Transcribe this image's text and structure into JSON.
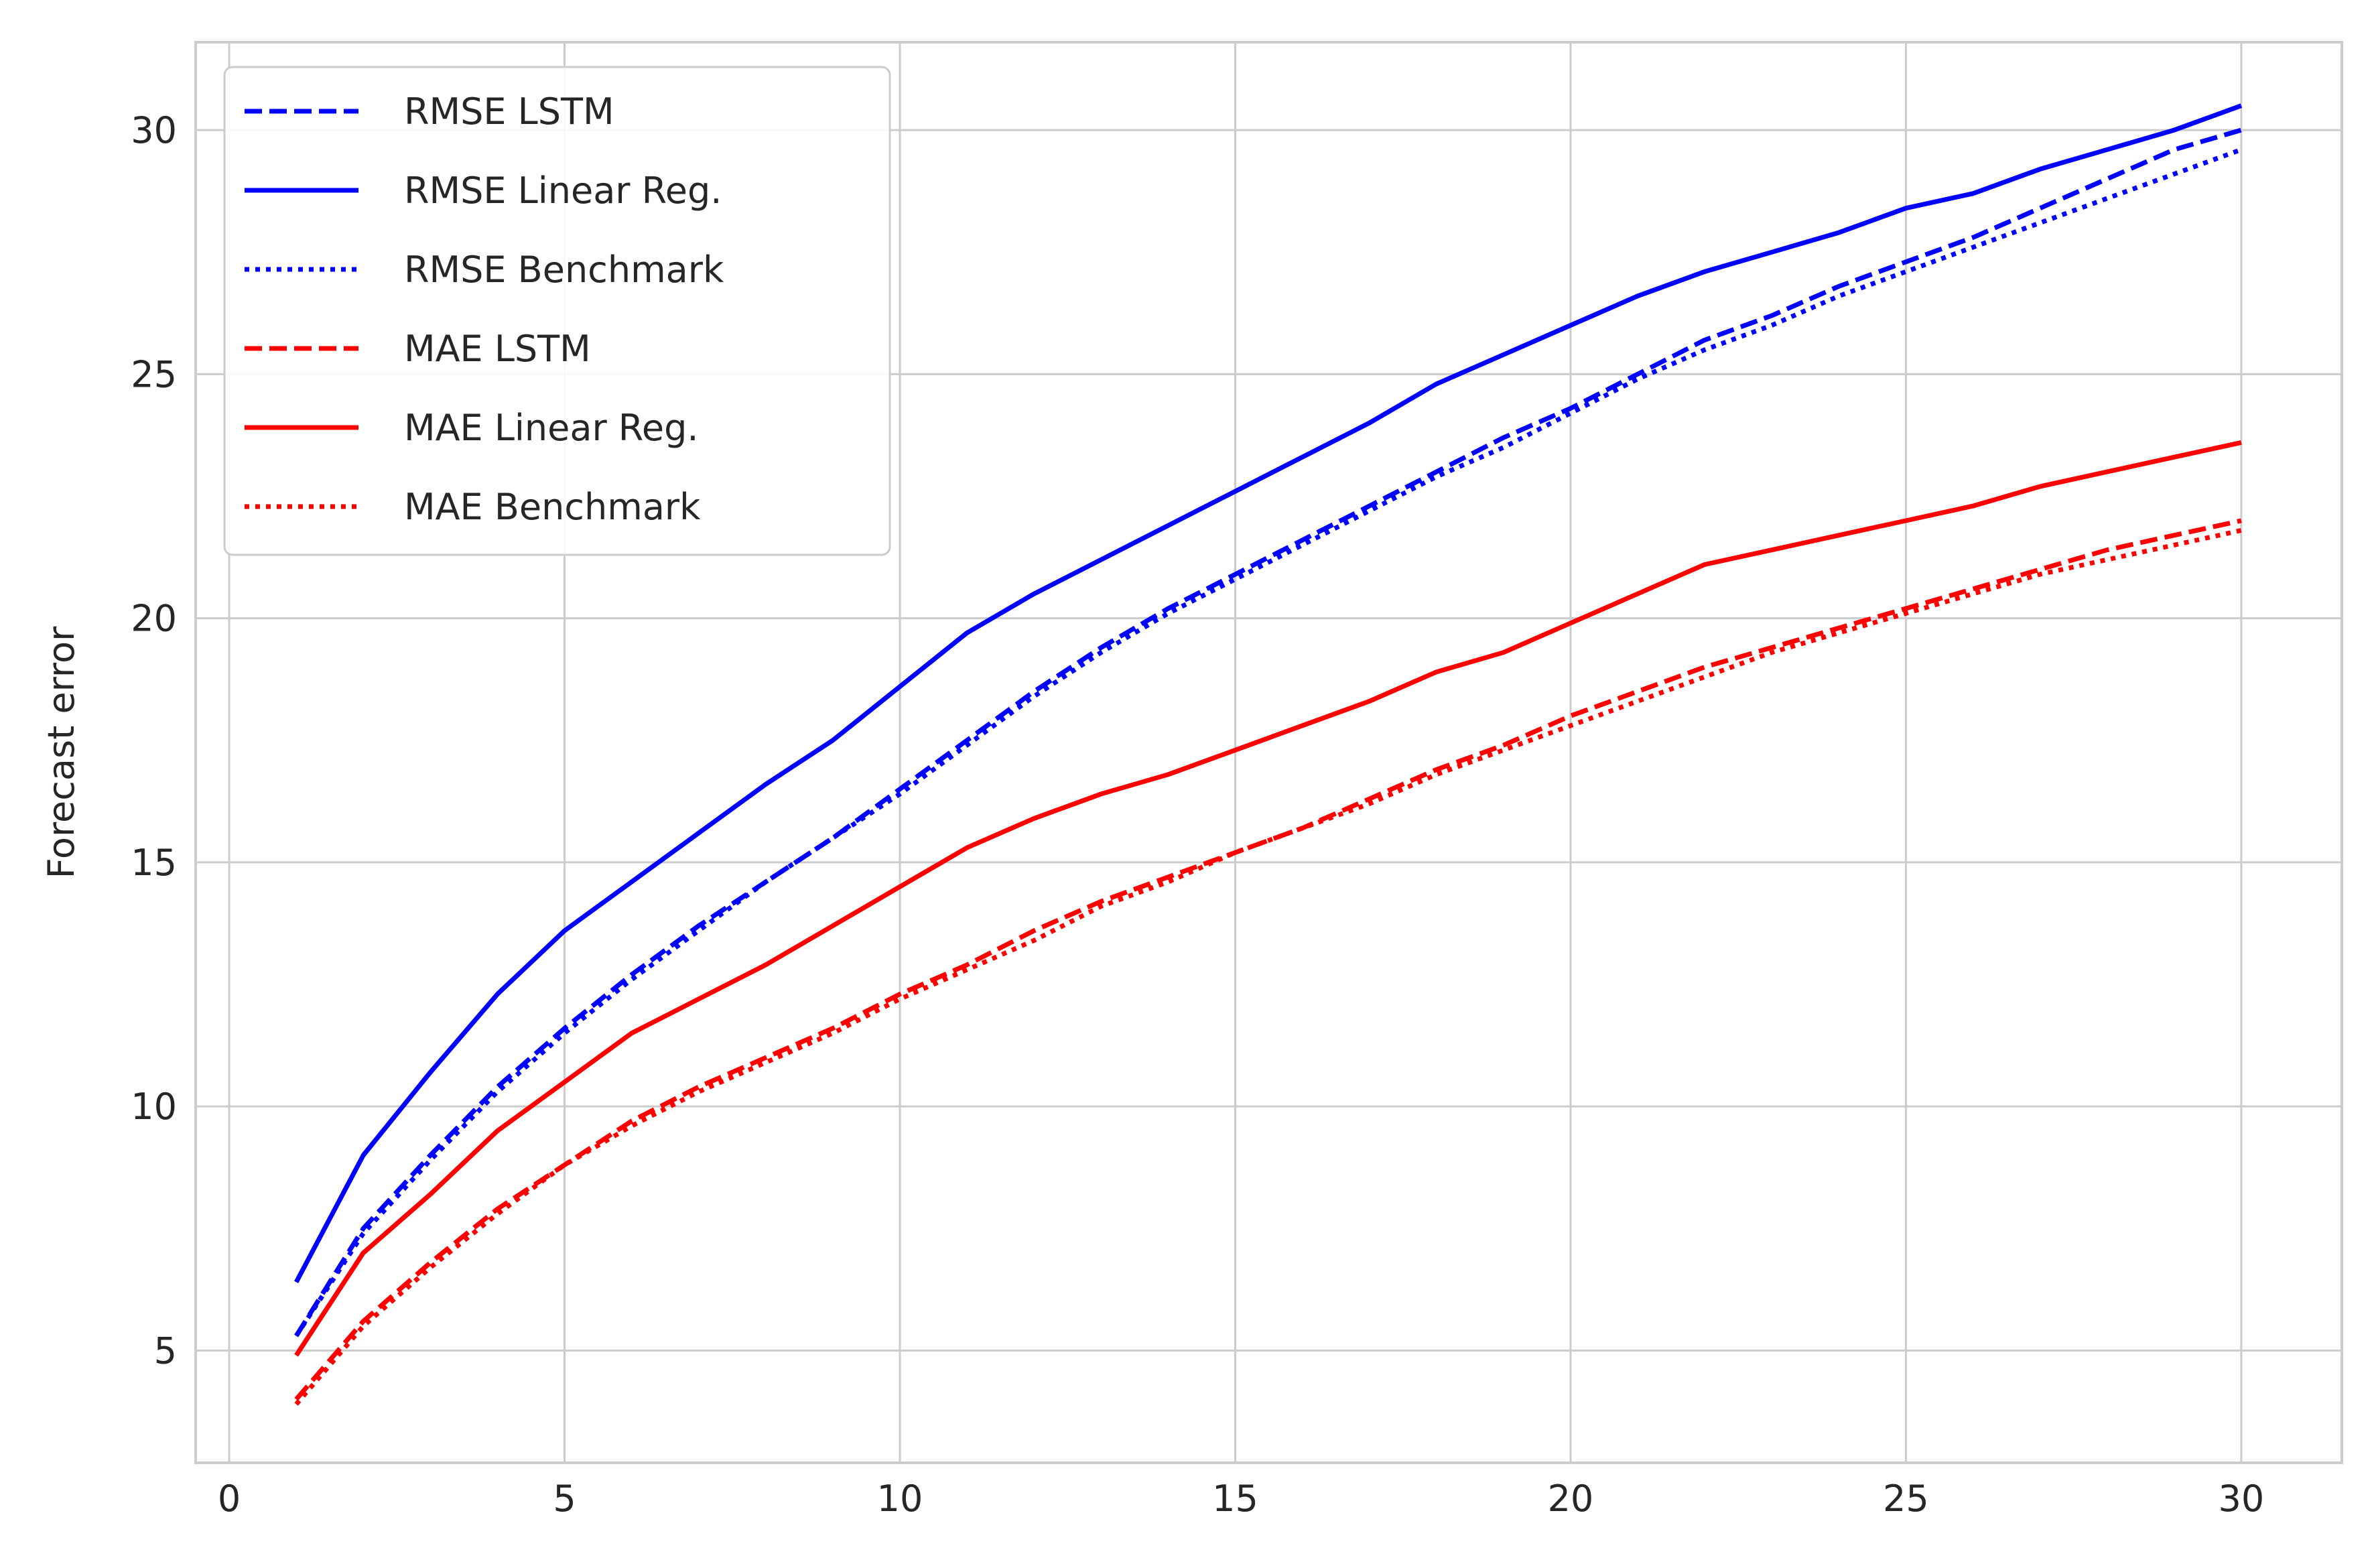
{
  "chart_data": {
    "type": "line",
    "title": "",
    "xlabel": "",
    "ylabel": "Forecast error",
    "xlim": [
      -0.5,
      31.5
    ],
    "ylim": [
      2.7,
      31.8
    ],
    "xticks": [
      0,
      5,
      10,
      15,
      20,
      25,
      30
    ],
    "yticks": [
      5,
      10,
      15,
      20,
      25,
      30
    ],
    "grid": true,
    "legend_position": "top-left",
    "x": [
      1,
      2,
      3,
      4,
      5,
      6,
      7,
      8,
      9,
      10,
      11,
      12,
      13,
      14,
      15,
      16,
      17,
      18,
      19,
      20,
      21,
      22,
      23,
      24,
      25,
      26,
      27,
      28,
      29,
      30
    ],
    "series": [
      {
        "name": "RMSE LSTM",
        "color": "#0000ff",
        "style": "dashed",
        "values": [
          5.3,
          7.5,
          9.0,
          10.4,
          11.6,
          12.7,
          13.7,
          14.6,
          15.5,
          16.5,
          17.5,
          18.5,
          19.4,
          20.2,
          20.9,
          21.6,
          22.3,
          23.0,
          23.7,
          24.3,
          25.0,
          25.7,
          26.2,
          26.8,
          27.3,
          27.8,
          28.4,
          29.0,
          29.6,
          30.0
        ]
      },
      {
        "name": "RMSE Linear Reg.",
        "color": "#0000ff",
        "style": "solid",
        "values": [
          6.4,
          9.0,
          10.7,
          12.3,
          13.6,
          14.6,
          15.6,
          16.6,
          17.5,
          18.6,
          19.7,
          20.5,
          21.2,
          21.9,
          22.6,
          23.3,
          24.0,
          24.8,
          25.4,
          26.0,
          26.6,
          27.1,
          27.5,
          27.9,
          28.4,
          28.7,
          29.2,
          29.6,
          30.0,
          30.5
        ]
      },
      {
        "name": "RMSE Benchmark",
        "color": "#0000ff",
        "style": "dotted",
        "values": [
          5.3,
          7.4,
          8.9,
          10.3,
          11.5,
          12.6,
          13.6,
          14.6,
          15.5,
          16.4,
          17.4,
          18.4,
          19.3,
          20.1,
          20.8,
          21.5,
          22.2,
          22.9,
          23.5,
          24.2,
          24.9,
          25.5,
          26.0,
          26.6,
          27.1,
          27.6,
          28.1,
          28.6,
          29.1,
          29.6
        ]
      },
      {
        "name": "MAE LSTM",
        "color": "#ff0000",
        "style": "dashed",
        "values": [
          4.0,
          5.6,
          6.8,
          7.9,
          8.8,
          9.7,
          10.4,
          11.0,
          11.6,
          12.3,
          12.9,
          13.6,
          14.2,
          14.7,
          15.2,
          15.7,
          16.3,
          16.9,
          17.4,
          18.0,
          18.5,
          19.0,
          19.4,
          19.8,
          20.2,
          20.6,
          21.0,
          21.4,
          21.7,
          22.0
        ]
      },
      {
        "name": "MAE Linear Reg.",
        "color": "#ff0000",
        "style": "solid",
        "values": [
          4.9,
          7.0,
          8.2,
          9.5,
          10.5,
          11.5,
          12.2,
          12.9,
          13.7,
          14.5,
          15.3,
          15.9,
          16.4,
          16.8,
          17.3,
          17.8,
          18.3,
          18.9,
          19.3,
          19.9,
          20.5,
          21.1,
          21.4,
          21.7,
          22.0,
          22.3,
          22.7,
          23.0,
          23.3,
          23.6
        ]
      },
      {
        "name": "MAE Benchmark",
        "color": "#ff0000",
        "style": "dotted",
        "values": [
          3.9,
          5.5,
          6.7,
          7.8,
          8.8,
          9.6,
          10.3,
          10.9,
          11.5,
          12.2,
          12.8,
          13.4,
          14.1,
          14.6,
          15.2,
          15.7,
          16.2,
          16.8,
          17.3,
          17.8,
          18.3,
          18.8,
          19.3,
          19.7,
          20.1,
          20.5,
          20.9,
          21.2,
          21.5,
          21.8
        ]
      }
    ]
  }
}
